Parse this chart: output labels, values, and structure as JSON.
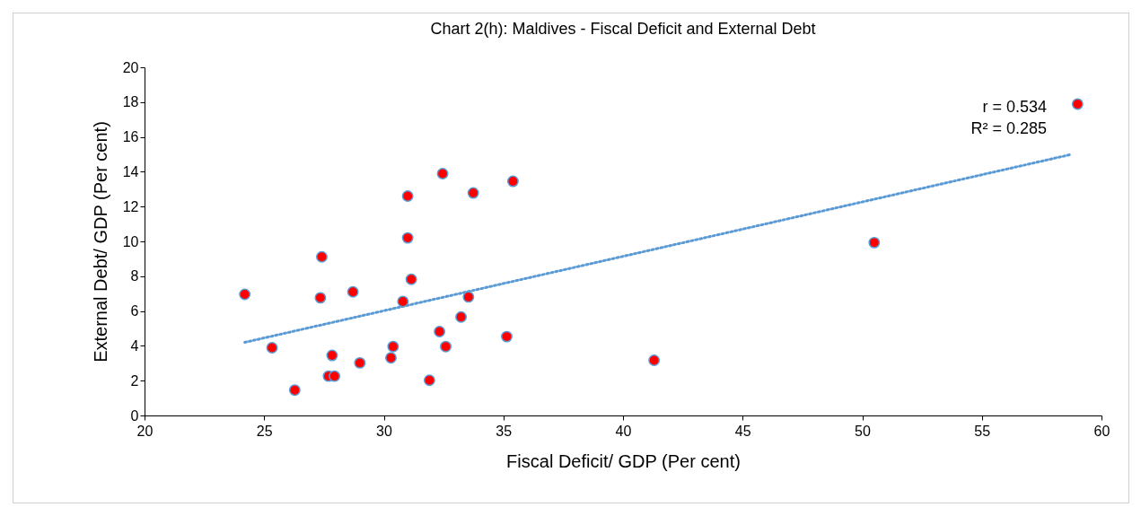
{
  "chart_data": {
    "type": "scatter",
    "title": "Chart 2(h): Maldives - Fiscal Deficit and External Debt",
    "xlabel": "Fiscal Deficit/ GDP (Per cent)",
    "ylabel": "External Debt/ GDP (Per cent)",
    "xlim": [
      20,
      60
    ],
    "xticks": [
      20,
      25,
      30,
      35,
      40,
      45,
      50,
      55,
      60
    ],
    "ylim": [
      0,
      20
    ],
    "yticks": [
      0,
      2,
      4,
      6,
      8,
      10,
      12,
      14,
      16,
      18,
      20
    ],
    "grid": false,
    "marker": "circle",
    "annotations": [
      "r = 0.534",
      "R² = 0.285"
    ],
    "series": [
      {
        "color": "#ff0000",
        "x": [
          24.19,
          25.33,
          26.28,
          27.35,
          27.41,
          27.84,
          27.69,
          27.94,
          28.71,
          29.0,
          30.3,
          30.39,
          30.8,
          31.0,
          31.0,
          31.15,
          31.91,
          32.33,
          32.46,
          32.59,
          33.23,
          33.54,
          33.74,
          35.14,
          35.4,
          41.3,
          50.5,
          59.0
        ],
        "values": [
          6.96,
          3.89,
          1.46,
          6.76,
          9.11,
          3.45,
          2.26,
          2.26,
          7.1,
          3.02,
          3.31,
          3.96,
          6.55,
          12.6,
          10.2,
          7.82,
          2.02,
          4.82,
          13.89,
          3.96,
          5.66,
          6.81,
          12.78,
          4.53,
          13.45,
          3.17,
          9.93,
          17.89
        ]
      },
      {
        "type": "line",
        "color": "#5b9bd5",
        "line_style": "dotted",
        "marker": "none",
        "x": [
          24.19,
          58.75
        ],
        "values": [
          4.2,
          15.0
        ]
      }
    ]
  }
}
